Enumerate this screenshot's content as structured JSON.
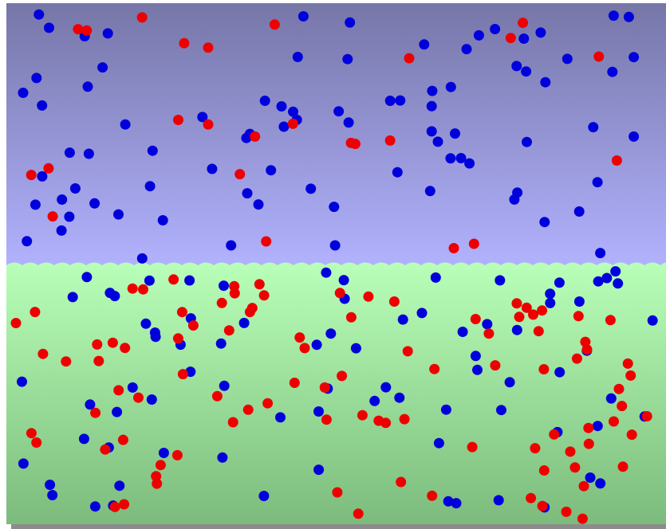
{
  "scene": {
    "colors": {
      "gas_top": "#7676a8",
      "gas_bottom": "#b2b2ff",
      "liquid_top": "#b8ffb8",
      "liquid_bottom": "#7cbb7c",
      "shadow": "#8c8c8c",
      "blue_particle": "#0000dd",
      "red_particle": "#ee0000"
    },
    "counts": {
      "blue_particles_gas": 83,
      "red_particles_gas": 25,
      "blue_particles_liquid": 79,
      "red_particles_liquid": 96
    }
  }
}
